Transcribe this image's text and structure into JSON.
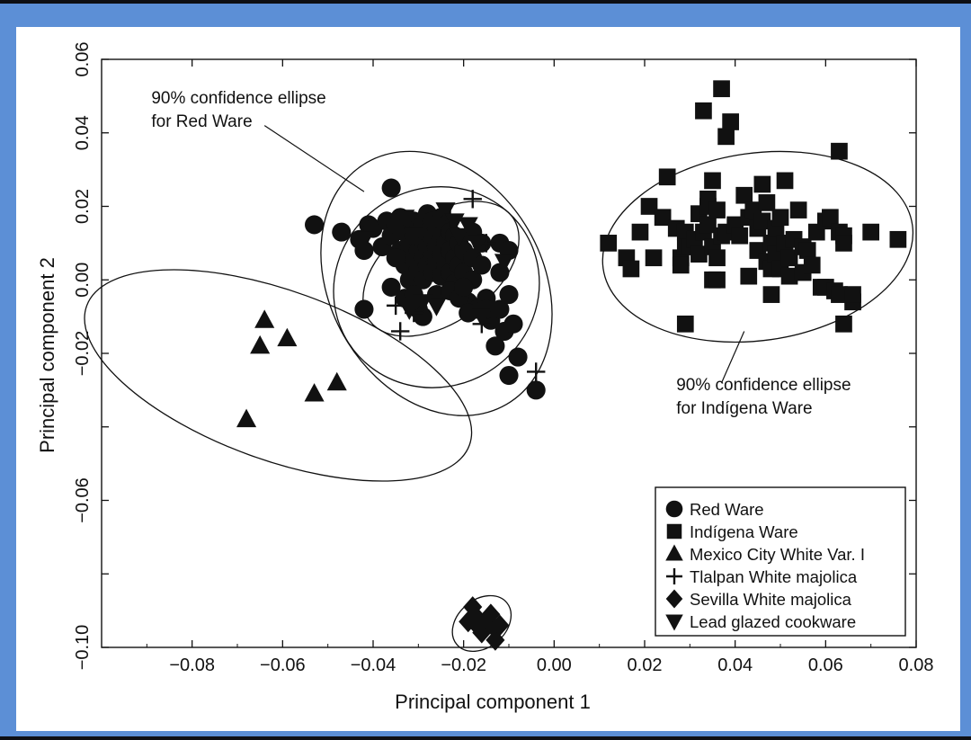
{
  "chart_data": {
    "type": "scatter",
    "title": "",
    "xlabel": "Principal component 1",
    "ylabel": "Principal component 2",
    "xlim": [
      -0.1,
      0.08
    ],
    "ylim": [
      -0.1,
      0.06
    ],
    "xticks": [
      -0.08,
      -0.06,
      -0.04,
      -0.02,
      0.0,
      0.02,
      0.04,
      0.06,
      0.08
    ],
    "xtick_labels": [
      "−0.08",
      "−0.06",
      "−0.04",
      "−0.02",
      "0.00",
      "0.02",
      "0.04",
      "0.06",
      "0.08"
    ],
    "yticks": [
      -0.1,
      -0.06,
      -0.02,
      0.0,
      0.02,
      0.04,
      0.06
    ],
    "ytick_labels": [
      "−0.10",
      "−0.06",
      "−0.02",
      "0.00",
      "0.02",
      "0.04",
      "0.06"
    ],
    "grid": false,
    "legend_position": "bottom-right",
    "series": [
      {
        "name": "Red Ware",
        "marker": "circle",
        "points": [
          [
            -0.053,
            0.015
          ],
          [
            -0.047,
            0.013
          ],
          [
            -0.043,
            0.011
          ],
          [
            -0.041,
            0.015
          ],
          [
            -0.04,
            0.014
          ],
          [
            -0.042,
            0.008
          ],
          [
            -0.038,
            0.009
          ],
          [
            -0.037,
            0.016
          ],
          [
            -0.036,
            0.025
          ],
          [
            -0.036,
            0.012
          ],
          [
            -0.035,
            0.015
          ],
          [
            -0.034,
            0.017
          ],
          [
            -0.034,
            0.008
          ],
          [
            -0.033,
            0.013
          ],
          [
            -0.033,
            0.004
          ],
          [
            -0.032,
            0.016
          ],
          [
            -0.032,
            0.01
          ],
          [
            -0.032,
            0.0
          ],
          [
            -0.031,
            0.016
          ],
          [
            -0.031,
            0.012
          ],
          [
            -0.031,
            0.006
          ],
          [
            -0.03,
            0.014
          ],
          [
            -0.03,
            0.008
          ],
          [
            -0.03,
            0.003
          ],
          [
            -0.029,
            0.015
          ],
          [
            -0.029,
            0.011
          ],
          [
            -0.029,
            0.006
          ],
          [
            -0.029,
            0.0
          ],
          [
            -0.028,
            0.018
          ],
          [
            -0.028,
            0.013
          ],
          [
            -0.028,
            0.009
          ],
          [
            -0.028,
            0.004
          ],
          [
            -0.027,
            0.016
          ],
          [
            -0.027,
            0.011
          ],
          [
            -0.027,
            0.007
          ],
          [
            -0.027,
            0.002
          ],
          [
            -0.026,
            0.014
          ],
          [
            -0.026,
            0.009
          ],
          [
            -0.026,
            0.005
          ],
          [
            -0.025,
            0.017
          ],
          [
            -0.025,
            0.012
          ],
          [
            -0.025,
            0.007
          ],
          [
            -0.025,
            0.001
          ],
          [
            -0.024,
            0.015
          ],
          [
            -0.024,
            0.01
          ],
          [
            -0.024,
            0.004
          ],
          [
            -0.023,
            0.013
          ],
          [
            -0.023,
            0.008
          ],
          [
            -0.023,
            0.002
          ],
          [
            -0.022,
            0.012
          ],
          [
            -0.022,
            0.006
          ],
          [
            -0.022,
            -0.001
          ],
          [
            -0.021,
            0.01
          ],
          [
            -0.021,
            0.004
          ],
          [
            -0.02,
            0.008
          ],
          [
            -0.02,
            0.002
          ],
          [
            -0.019,
            -0.006
          ],
          [
            -0.018,
            0.013
          ],
          [
            -0.018,
            0.006
          ],
          [
            -0.018,
            0.0
          ],
          [
            -0.017,
            -0.008
          ],
          [
            -0.016,
            0.01
          ],
          [
            -0.016,
            0.004
          ],
          [
            -0.015,
            -0.005
          ],
          [
            -0.014,
            -0.011
          ],
          [
            -0.012,
            0.01
          ],
          [
            -0.012,
            0.002
          ],
          [
            -0.012,
            -0.008
          ],
          [
            -0.011,
            -0.014
          ],
          [
            -0.01,
            0.008
          ],
          [
            -0.01,
            -0.004
          ],
          [
            -0.009,
            -0.012
          ],
          [
            -0.013,
            -0.018
          ],
          [
            -0.01,
            -0.026
          ],
          [
            -0.008,
            -0.021
          ],
          [
            -0.004,
            -0.03
          ],
          [
            -0.042,
            -0.008
          ],
          [
            -0.036,
            -0.002
          ],
          [
            -0.033,
            -0.005
          ],
          [
            -0.03,
            -0.008
          ],
          [
            -0.029,
            -0.01
          ],
          [
            -0.031,
            -0.004
          ],
          [
            -0.026,
            -0.004
          ],
          [
            -0.023,
            -0.003
          ],
          [
            -0.021,
            -0.005
          ],
          [
            -0.035,
            0.006
          ],
          [
            -0.019,
            -0.009
          ],
          [
            -0.02,
            -0.002
          ],
          [
            -0.015,
            -0.008
          ]
        ]
      },
      {
        "name": "Indígena Ware",
        "marker": "square",
        "points": [
          [
            0.012,
            0.01
          ],
          [
            0.016,
            0.006
          ],
          [
            0.017,
            0.003
          ],
          [
            0.019,
            0.013
          ],
          [
            0.021,
            0.02
          ],
          [
            0.022,
            0.006
          ],
          [
            0.024,
            0.017
          ],
          [
            0.025,
            0.028
          ],
          [
            0.027,
            0.014
          ],
          [
            0.028,
            0.006
          ],
          [
            0.028,
            0.004
          ],
          [
            0.029,
            0.013
          ],
          [
            0.029,
            0.009
          ],
          [
            0.029,
            -0.012
          ],
          [
            0.03,
            0.009
          ],
          [
            0.031,
            0.011
          ],
          [
            0.032,
            0.018
          ],
          [
            0.032,
            0.007
          ],
          [
            0.033,
            0.013
          ],
          [
            0.033,
            0.046
          ],
          [
            0.034,
            0.02
          ],
          [
            0.034,
            0.022
          ],
          [
            0.034,
            0.015
          ],
          [
            0.035,
            0.027
          ],
          [
            0.035,
            0.009
          ],
          [
            0.035,
            0.0
          ],
          [
            0.036,
            0.006
          ],
          [
            0.036,
            0.019
          ],
          [
            0.036,
            0.0
          ],
          [
            0.037,
            0.012
          ],
          [
            0.037,
            0.052
          ],
          [
            0.038,
            0.039
          ],
          [
            0.038,
            0.013
          ],
          [
            0.039,
            0.043
          ],
          [
            0.04,
            0.015
          ],
          [
            0.041,
            0.012
          ],
          [
            0.042,
            0.023
          ],
          [
            0.043,
            0.017
          ],
          [
            0.043,
            0.001
          ],
          [
            0.044,
            0.019
          ],
          [
            0.045,
            0.014
          ],
          [
            0.045,
            0.008
          ],
          [
            0.046,
            0.026
          ],
          [
            0.046,
            0.016
          ],
          [
            0.047,
            0.005
          ],
          [
            0.047,
            0.021
          ],
          [
            0.048,
            0.01
          ],
          [
            0.048,
            0.003
          ],
          [
            0.048,
            -0.004
          ],
          [
            0.049,
            0.014
          ],
          [
            0.049,
            0.007
          ],
          [
            0.05,
            0.017
          ],
          [
            0.05,
            0.003
          ],
          [
            0.051,
            0.01
          ],
          [
            0.051,
            0.027
          ],
          [
            0.052,
            0.006
          ],
          [
            0.052,
            0.001
          ],
          [
            0.053,
            0.011
          ],
          [
            0.054,
            0.019
          ],
          [
            0.055,
            0.009
          ],
          [
            0.055,
            0.002
          ],
          [
            0.056,
            0.008
          ],
          [
            0.057,
            0.004
          ],
          [
            0.058,
            0.013
          ],
          [
            0.059,
            -0.002
          ],
          [
            0.06,
            0.016
          ],
          [
            0.06,
            -0.002
          ],
          [
            0.061,
            0.017
          ],
          [
            0.062,
            -0.003
          ],
          [
            0.063,
            0.035
          ],
          [
            0.063,
            0.013
          ],
          [
            0.063,
            -0.004
          ],
          [
            0.064,
            0.012
          ],
          [
            0.064,
            0.01
          ],
          [
            0.064,
            -0.012
          ],
          [
            0.066,
            -0.006
          ],
          [
            0.066,
            -0.004
          ],
          [
            0.07,
            0.013
          ],
          [
            0.076,
            0.011
          ]
        ]
      },
      {
        "name": "Mexico City White Var. I",
        "marker": "triangle",
        "points": [
          [
            -0.068,
            -0.038
          ],
          [
            -0.065,
            -0.018
          ],
          [
            -0.064,
            -0.011
          ],
          [
            -0.059,
            -0.016
          ],
          [
            -0.053,
            -0.031
          ],
          [
            -0.048,
            -0.028
          ]
        ]
      },
      {
        "name": "Tlalpan White majolica",
        "marker": "plus",
        "points": [
          [
            -0.018,
            0.022
          ],
          [
            -0.015,
            0.01
          ],
          [
            -0.035,
            -0.007
          ],
          [
            -0.034,
            -0.014
          ],
          [
            -0.031,
            -0.009
          ],
          [
            -0.004,
            -0.025
          ],
          [
            -0.016,
            -0.012
          ],
          [
            -0.023,
            0.017
          ]
        ]
      },
      {
        "name": "Sevilla White majolica",
        "marker": "diamond",
        "points": [
          [
            -0.019,
            -0.093
          ],
          [
            -0.018,
            -0.089
          ],
          [
            -0.017,
            -0.092
          ],
          [
            -0.016,
            -0.096
          ],
          [
            -0.015,
            -0.093
          ],
          [
            -0.014,
            -0.091
          ],
          [
            -0.013,
            -0.095
          ],
          [
            -0.013,
            -0.098
          ],
          [
            -0.012,
            -0.094
          ],
          [
            -0.017,
            -0.094
          ]
        ]
      },
      {
        "name": "Lead glazed cookware",
        "marker": "triangle-down",
        "points": [
          [
            -0.042,
            0.011
          ],
          [
            -0.035,
            0.014
          ],
          [
            -0.033,
            0.017
          ],
          [
            -0.031,
            0.012
          ],
          [
            -0.027,
            0.015
          ],
          [
            -0.024,
            0.019
          ],
          [
            -0.022,
            0.016
          ],
          [
            -0.021,
            0.012
          ],
          [
            -0.019,
            0.015
          ],
          [
            -0.017,
            0.01
          ],
          [
            -0.016,
            -0.01
          ],
          [
            -0.026,
            -0.007
          ],
          [
            -0.011,
            0.005
          ],
          [
            -0.013,
            -0.008
          ],
          [
            -0.032,
            -0.008
          ],
          [
            -0.029,
            -0.006
          ]
        ]
      }
    ],
    "ellipses": [
      {
        "name": "Red Ware 90% confidence ellipse",
        "cx": -0.025,
        "cy": 0.003,
        "rx": 0.0195,
        "ry": 0.0145,
        "angle": -36
      },
      {
        "name": "Red Ware outer ellipse",
        "cx": -0.026,
        "cy": -0.001,
        "rx": 0.0235,
        "ry": 0.038,
        "angle": -30
      },
      {
        "name": "Red Ware intermediate ellipse",
        "cx": -0.026,
        "cy": -0.002,
        "rx": 0.023,
        "ry": 0.027,
        "angle": -30
      },
      {
        "name": "Mexico City White Var. I ellipse",
        "cx": -0.061,
        "cy": -0.026,
        "rx": 0.045,
        "ry": 0.023,
        "angle": 20
      },
      {
        "name": "Indígena Ware 90% confidence ellipse",
        "cx": 0.045,
        "cy": 0.009,
        "rx": 0.0345,
        "ry": 0.0255,
        "angle": -8
      },
      {
        "name": "Sevilla White majolica ellipse",
        "cx": -0.016,
        "cy": -0.0935,
        "rx": 0.0072,
        "ry": 0.0065,
        "angle": -40
      }
    ],
    "annotations": [
      {
        "lines": [
          "90% confidence ellipse",
          "for Red Ware"
        ],
        "x": -0.089,
        "y": 0.048,
        "pointer": [
          [
            -0.064,
            0.042
          ],
          [
            -0.042,
            0.024
          ]
        ]
      },
      {
        "lines": [
          "90% confidence ellipse",
          "for Indígena Ware"
        ],
        "x": 0.027,
        "y": -0.03,
        "pointer": [
          [
            0.037,
            -0.028
          ],
          [
            0.042,
            -0.014
          ]
        ]
      }
    ]
  }
}
